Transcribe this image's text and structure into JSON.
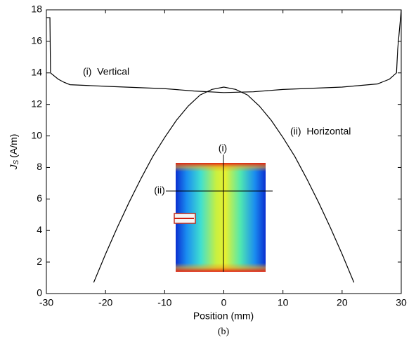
{
  "chart_data": {
    "type": "line",
    "xlabel": "Position (mm)",
    "ylabel_symbol": "J",
    "ylabel_subscript": "S",
    "ylabel_unit": "(A/m)",
    "caption": "(b)",
    "xlim": [
      -30,
      30
    ],
    "xticks": [
      -30,
      -20,
      -10,
      0,
      10,
      20,
      30
    ],
    "ylim": [
      0,
      18
    ],
    "yticks": [
      0,
      2,
      4,
      6,
      8,
      10,
      12,
      14,
      16,
      18
    ],
    "series": [
      {
        "name": "(i)  Vertical",
        "color": "#000000",
        "x": [
          -30,
          -29.4,
          -29.3,
          -28,
          -27,
          -26,
          -20,
          -10,
          -5,
          0,
          5,
          10,
          20,
          26,
          27,
          28,
          29.2,
          29.4,
          30
        ],
        "values": [
          17.5,
          17.5,
          14.0,
          13.6,
          13.4,
          13.25,
          13.15,
          13.0,
          12.85,
          12.75,
          12.8,
          12.95,
          13.1,
          13.3,
          13.45,
          13.6,
          14.0,
          15.5,
          18.0
        ]
      },
      {
        "name": "(ii)  Horizontal",
        "color": "#000000",
        "x": [
          -22,
          -20,
          -18,
          -16,
          -14,
          -12,
          -10,
          -8,
          -6,
          -4,
          -2,
          0,
          2,
          4,
          6,
          8,
          10,
          12,
          14,
          16,
          18,
          20,
          22
        ],
        "values": [
          0.7,
          2.5,
          4.2,
          5.8,
          7.3,
          8.7,
          9.9,
          11.0,
          11.9,
          12.6,
          12.95,
          13.1,
          12.95,
          12.6,
          11.9,
          11.0,
          9.9,
          8.7,
          7.3,
          5.8,
          4.2,
          2.5,
          0.7
        ]
      }
    ],
    "inset": {
      "labels": [
        "(i)",
        "(ii)"
      ]
    }
  }
}
